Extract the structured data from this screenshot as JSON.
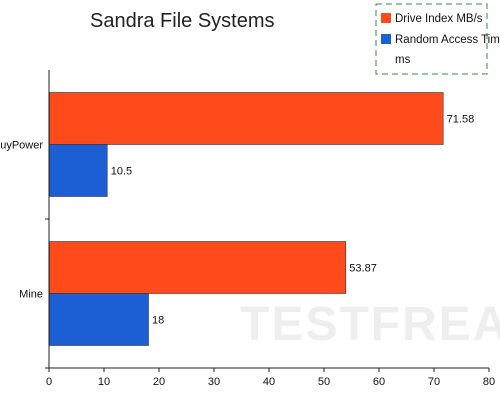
{
  "chart_data": {
    "type": "bar",
    "orientation": "horizontal",
    "title": "Sandra File Systems",
    "categories": [
      "iBuyPower",
      "Mine"
    ],
    "series": [
      {
        "name": "Drive Index MB/s",
        "color": "#ff4a1c",
        "values": [
          71.58,
          53.87
        ]
      },
      {
        "name": "Random Access Time ms",
        "color": "#1c5fd4",
        "values": [
          10.5,
          18
        ]
      }
    ],
    "data_labels": [
      [
        "71.58",
        "53.87"
      ],
      [
        "10.5",
        "18"
      ]
    ],
    "legend": {
      "placement": "top-right",
      "items": [
        "Drive Index MB/s",
        "Random Access Time",
        "ms"
      ]
    },
    "xlim": [
      0,
      80
    ],
    "xticks": [
      "0",
      "10",
      "20",
      "30",
      "40",
      "50",
      "60",
      "70",
      "80"
    ],
    "grid": false,
    "watermark_logo": "TESTFREAKS"
  }
}
